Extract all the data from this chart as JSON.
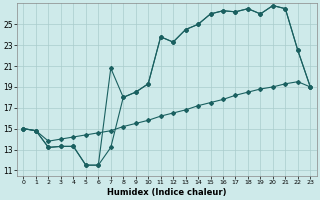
{
  "xlabel": "Humidex (Indice chaleur)",
  "bg_color": "#ceeaea",
  "grid_color": "#aacccc",
  "line_color": "#1a6060",
  "xlim": [
    -0.5,
    23.5
  ],
  "ylim": [
    10.5,
    27
  ],
  "yticks": [
    11,
    13,
    15,
    17,
    19,
    21,
    23,
    25
  ],
  "xticks": [
    0,
    1,
    2,
    3,
    4,
    5,
    6,
    7,
    8,
    9,
    10,
    11,
    12,
    13,
    14,
    15,
    16,
    17,
    18,
    19,
    20,
    21,
    22,
    23
  ],
  "series1_x": [
    0,
    1,
    2,
    3,
    4,
    5,
    6,
    7,
    8,
    9,
    10,
    11,
    12,
    13,
    14,
    15,
    16,
    17,
    18,
    19,
    20,
    21,
    22,
    23
  ],
  "series1_y": [
    15,
    14.8,
    13.2,
    13.3,
    13.3,
    11.5,
    11.5,
    20.8,
    18.0,
    18.5,
    19.3,
    23.8,
    23.3,
    24.5,
    25.0,
    26.0,
    26.3,
    26.2,
    26.5,
    26.0,
    26.8,
    26.5,
    22.5,
    19.0
  ],
  "series2_x": [
    0,
    1,
    2,
    3,
    4,
    5,
    6,
    7,
    8,
    9,
    10,
    11,
    12,
    13,
    14,
    15,
    16,
    17,
    18,
    19,
    20,
    21,
    22,
    23
  ],
  "series2_y": [
    15,
    14.8,
    13.2,
    13.3,
    13.3,
    11.5,
    11.5,
    13.2,
    18.0,
    18.5,
    19.3,
    23.8,
    23.3,
    24.5,
    25.0,
    26.0,
    26.3,
    26.2,
    26.5,
    26.0,
    26.8,
    26.5,
    22.5,
    19.0
  ],
  "series3_x": [
    0,
    1,
    2,
    3,
    4,
    5,
    6,
    7,
    8,
    9,
    10,
    11,
    12,
    13,
    14,
    15,
    16,
    17,
    18,
    19,
    20,
    21,
    22,
    23
  ],
  "series3_y": [
    15,
    14.8,
    13.8,
    14.0,
    14.2,
    14.4,
    14.6,
    14.8,
    15.2,
    15.5,
    15.8,
    16.2,
    16.5,
    16.8,
    17.2,
    17.5,
    17.8,
    18.2,
    18.5,
    18.8,
    19.0,
    19.3,
    19.5,
    19.0
  ]
}
